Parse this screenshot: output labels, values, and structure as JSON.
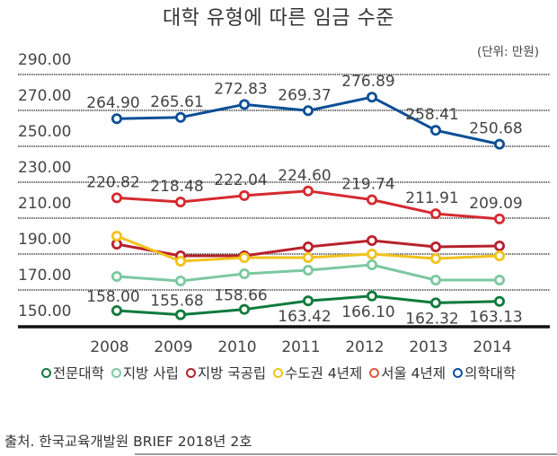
{
  "chart_data": {
    "type": "line",
    "title": "대학 유형에 따른 임금 수준",
    "unit": "(단위: 만원)",
    "xlabel": "",
    "ylabel": "",
    "x": [
      "2008",
      "2009",
      "2010",
      "2011",
      "2012",
      "2013",
      "2014"
    ],
    "yticks": [
      "290.00",
      "270.00",
      "250.00",
      "230.00",
      "210.00",
      "190.00",
      "170.00",
      "150.00"
    ],
    "ylim": [
      150,
      290
    ],
    "grid": true,
    "legend_position": "bottom",
    "series": [
      {
        "name": "전문대학",
        "color": "#0f7a3c",
        "labeled": true,
        "label_position": "alternating",
        "values": [
          158.0,
          155.68,
          158.66,
          163.42,
          166.1,
          162.32,
          163.13
        ],
        "labels": [
          "158.00",
          "155.68",
          "158.66",
          "163.42",
          "166.10",
          "162.32",
          "163.13"
        ]
      },
      {
        "name": "지방 사립",
        "color": "#7cc8a0",
        "labeled": false,
        "values": [
          177,
          174.5,
          178.5,
          180.5,
          183.5,
          175,
          175
        ]
      },
      {
        "name": "지방 국공립",
        "color": "#b8212b",
        "labeled": false,
        "values": [
          195,
          188.5,
          188.5,
          193.5,
          197,
          193.5,
          194
        ]
      },
      {
        "name": "수도권 4년제",
        "color": "#f2c21b",
        "labeled": false,
        "values": [
          199.5,
          185.5,
          187.5,
          187.5,
          189.5,
          187,
          188.5
        ]
      },
      {
        "name": "서울 4년제",
        "color": "#d52a30",
        "legend_color": "#e2593d",
        "labeled": true,
        "label_position": "above",
        "values": [
          220.82,
          218.48,
          222.04,
          224.6,
          219.74,
          211.91,
          209.09
        ],
        "labels": [
          "220.82",
          "218.48",
          "222.04",
          "224.60",
          "219.74",
          "211.91",
          "209.09"
        ]
      },
      {
        "name": "의학대학",
        "color": "#0c4f97",
        "labeled": true,
        "label_position": "above",
        "values": [
          264.9,
          265.61,
          272.83,
          269.37,
          276.89,
          258.41,
          250.68
        ],
        "labels": [
          "264.90",
          "265.61",
          "272.83",
          "269.37",
          "276.89",
          "258.41",
          "250.68"
        ]
      }
    ]
  },
  "source": "출처. 한국교육개발원 BRIEF 2018년 2호"
}
